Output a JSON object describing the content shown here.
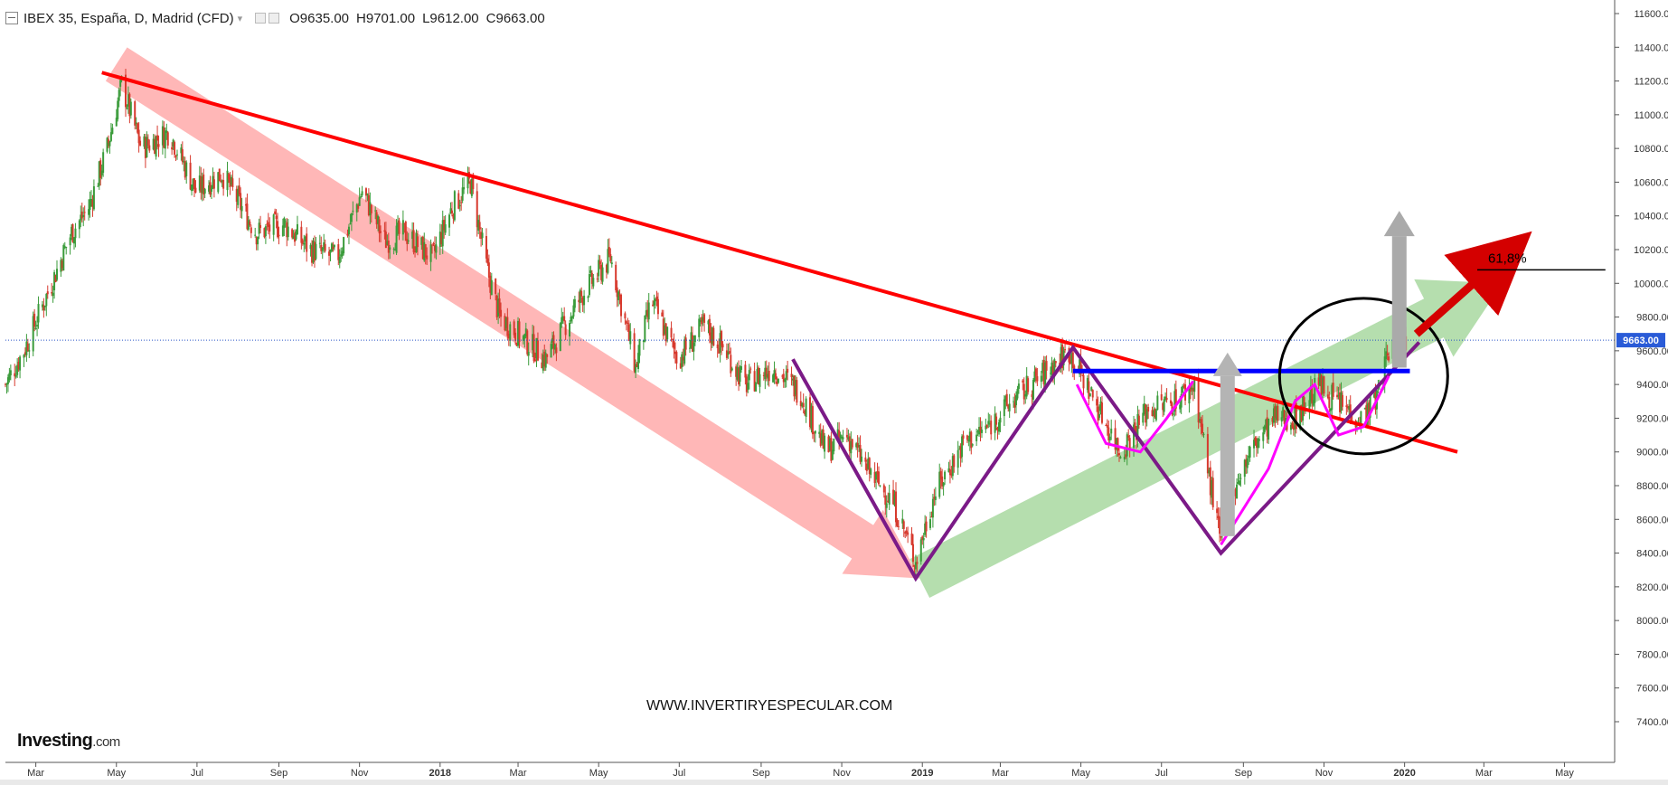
{
  "header": {
    "symbol": "IBEX 35, España, D, Madrid (CFD)",
    "open": "O9635.00",
    "high": "H9701.00",
    "low": "L9612.00",
    "close": "C9663.00"
  },
  "branding": {
    "logo_main": "Investing",
    "logo_domain": ".com",
    "watermark": "WWW.INVERTIRYESPECULAR.COM"
  },
  "colors": {
    "up": "#3a9b3a",
    "down": "#d73a2e",
    "trend": "#ff0000",
    "pattern": "#7b1a87",
    "neckline": "#0000ff",
    "cup": "#ff00ff",
    "price_line": "#2a56c6",
    "price_tag": "#2a5bd7"
  },
  "chart_data": {
    "type": "candlestick",
    "instrument": "IBEX 35, España, D, Madrid (CFD)",
    "last_price": 9663.0,
    "last_price_label": "9663.00",
    "ylim": [
      7200,
      11700
    ],
    "y_ticks": [
      7400,
      7600,
      7800,
      8000,
      8200,
      8400,
      8600,
      8800,
      9000,
      9200,
      9400,
      9600,
      9800,
      10000,
      10200,
      10400,
      10600,
      10800,
      11000,
      11200,
      11400,
      11600
    ],
    "y_tick_labels": [
      "7400.00",
      "7600.00",
      "7800.00",
      "8000.00",
      "8200.00",
      "8400.00",
      "8600.00",
      "8800.00",
      "9000.00",
      "9200.00",
      "9400.00",
      "9600.00",
      "9800.00",
      "10000.00",
      "10200.00",
      "10400.00",
      "10600.00",
      "10800.00",
      "11000.00",
      "11200.00",
      "11400.00",
      "11600.00"
    ],
    "x_tick_labels": [
      "Mar",
      "May",
      "Jul",
      "Sep",
      "Nov",
      "2018",
      "Mar",
      "May",
      "Jul",
      "Sep",
      "Nov",
      "2019",
      "Mar",
      "May",
      "Jul",
      "Sep",
      "Nov",
      "2020",
      "Mar",
      "May"
    ],
    "x_tick_bold": [
      false,
      false,
      false,
      false,
      false,
      true,
      false,
      false,
      false,
      false,
      false,
      true,
      false,
      false,
      false,
      false,
      false,
      true,
      false,
      false
    ],
    "x_range": [
      "2017-02-06",
      "2020-06-08"
    ],
    "x_tick_dates": [
      "2017-03-01",
      "2017-05-01",
      "2017-07-01",
      "2017-09-01",
      "2017-11-01",
      "2018-01-01",
      "2018-03-01",
      "2018-05-01",
      "2018-07-01",
      "2018-09-01",
      "2018-11-01",
      "2019-01-01",
      "2019-03-01",
      "2019-05-01",
      "2019-07-01",
      "2019-09-01",
      "2019-11-01",
      "2020-01-01",
      "2020-03-01",
      "2020-05-01"
    ],
    "price_path": [
      [
        "2017-02-06",
        9400
      ],
      [
        "2017-02-20",
        9600
      ],
      [
        "2017-03-13",
        10000
      ],
      [
        "2017-03-28",
        10300
      ],
      [
        "2017-04-10",
        10450
      ],
      [
        "2017-04-24",
        10800
      ],
      [
        "2017-05-05",
        11180
      ],
      [
        "2017-05-20",
        10800
      ],
      [
        "2017-06-10",
        10900
      ],
      [
        "2017-06-30",
        10550
      ],
      [
        "2017-07-20",
        10650
      ],
      [
        "2017-08-15",
        10300
      ],
      [
        "2017-09-05",
        10350
      ],
      [
        "2017-09-25",
        10200
      ],
      [
        "2017-10-15",
        10150
      ],
      [
        "2017-11-03",
        10550
      ],
      [
        "2017-11-20",
        10250
      ],
      [
        "2017-12-05",
        10300
      ],
      [
        "2017-12-26",
        10150
      ],
      [
        "2018-01-10",
        10450
      ],
      [
        "2018-01-24",
        10600
      ],
      [
        "2018-02-05",
        10100
      ],
      [
        "2018-02-15",
        9800
      ],
      [
        "2018-03-01",
        9700
      ],
      [
        "2018-03-22",
        9550
      ],
      [
        "2018-04-05",
        9750
      ],
      [
        "2018-04-20",
        9950
      ],
      [
        "2018-05-10",
        10150
      ],
      [
        "2018-05-29",
        9500
      ],
      [
        "2018-06-10",
        9900
      ],
      [
        "2018-06-30",
        9550
      ],
      [
        "2018-07-20",
        9750
      ],
      [
        "2018-08-05",
        9600
      ],
      [
        "2018-08-20",
        9400
      ],
      [
        "2018-09-10",
        9500
      ],
      [
        "2018-10-01",
        9350
      ],
      [
        "2018-10-20",
        9000
      ],
      [
        "2018-11-05",
        9100
      ],
      [
        "2018-11-20",
        8900
      ],
      [
        "2018-12-10",
        8700
      ],
      [
        "2018-12-27",
        8350
      ],
      [
        "2019-01-10",
        8750
      ],
      [
        "2019-02-01",
        9050
      ],
      [
        "2019-02-20",
        9150
      ],
      [
        "2019-03-10",
        9300
      ],
      [
        "2019-04-01",
        9450
      ],
      [
        "2019-04-22",
        9600
      ],
      [
        "2019-05-05",
        9400
      ],
      [
        "2019-05-31",
        9000
      ],
      [
        "2019-06-20",
        9250
      ],
      [
        "2019-07-10",
        9300
      ],
      [
        "2019-07-26",
        9400
      ],
      [
        "2019-08-05",
        8900
      ],
      [
        "2019-08-15",
        8450
      ],
      [
        "2019-08-25",
        8800
      ],
      [
        "2019-09-10",
        9050
      ],
      [
        "2019-09-25",
        9200
      ],
      [
        "2019-10-10",
        9200
      ],
      [
        "2019-10-28",
        9400
      ],
      [
        "2019-11-10",
        9300
      ],
      [
        "2019-11-29",
        9200
      ],
      [
        "2019-12-10",
        9300
      ],
      [
        "2019-12-20",
        9600
      ],
      [
        "2020-01-02",
        9663
      ]
    ],
    "annotations": {
      "fib_label": "61,8%",
      "fib_level": 10080
    }
  }
}
